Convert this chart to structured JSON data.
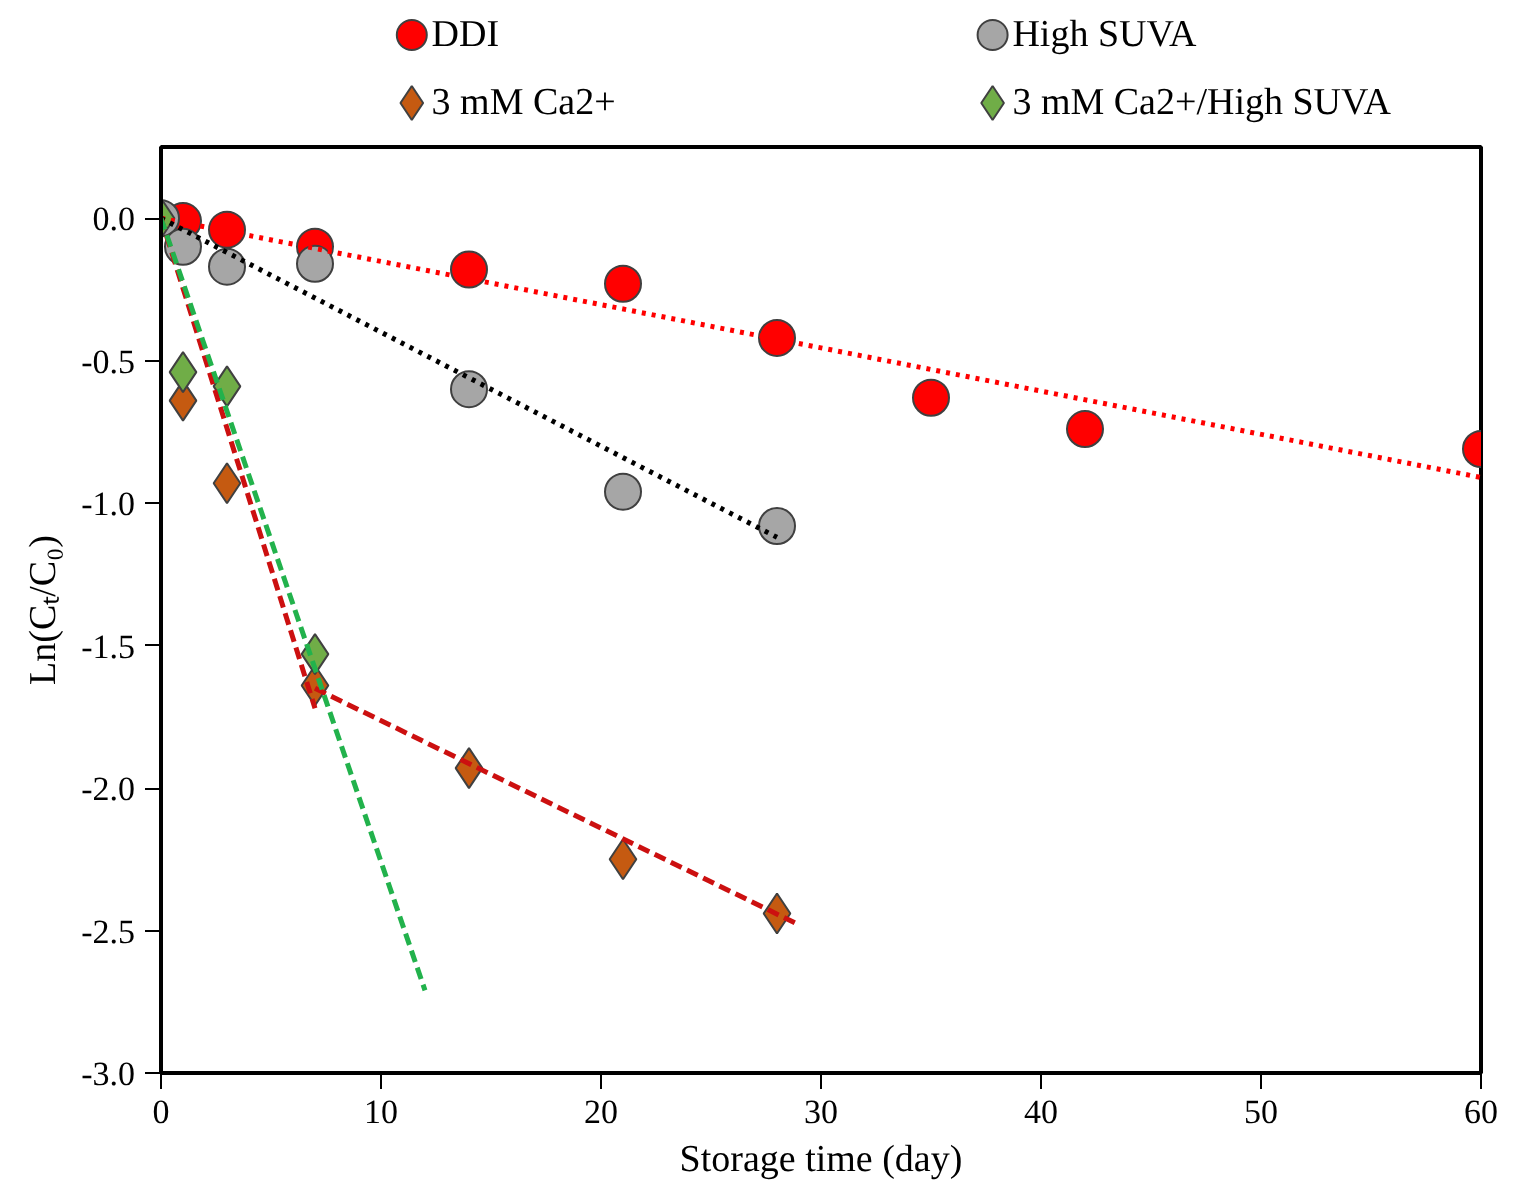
{
  "chart_data": {
    "type": "scatter",
    "xlabel": "Storage time (day)",
    "ylabel": "Ln(Cₜ/C₀)",
    "xlim": [
      0,
      60
    ],
    "ylim": [
      -3,
      0.25
    ],
    "xticks": [
      0,
      10,
      20,
      30,
      40,
      50,
      60
    ],
    "yticks": [
      {
        "value": -3,
        "label": "-3.0"
      },
      {
        "value": -2.5,
        "label": "-2.5"
      },
      {
        "value": -2,
        "label": "-2.0"
      },
      {
        "value": -1.5,
        "label": "-1.5"
      },
      {
        "value": -1,
        "label": "-1.0"
      },
      {
        "value": -0.5,
        "label": "-0.5"
      },
      {
        "value": 0,
        "label": "0.0"
      }
    ],
    "grid": false,
    "legend": "top",
    "series": [
      {
        "name": "DDI",
        "color": "#ff0000",
        "marker": "circle",
        "x": [
          1,
          3,
          7,
          14,
          21,
          28,
          35,
          42,
          60
        ],
        "values": [
          -0.01,
          -0.04,
          -0.1,
          -0.18,
          -0.23,
          -0.42,
          -0.63,
          -0.74,
          -0.81
        ]
      },
      {
        "name": "High SUVA",
        "color": "#a6a6a6",
        "marker": "circle",
        "x": [
          0,
          1,
          3,
          7,
          14,
          21,
          28
        ],
        "values": [
          0,
          -0.1,
          -0.17,
          -0.16,
          -0.6,
          -0.96,
          -1.08
        ]
      },
      {
        "name": "3 mM Ca2+",
        "color": "#c55a11",
        "marker": "diamond",
        "x": [
          1,
          3,
          7,
          14,
          21,
          28
        ],
        "values": [
          -0.64,
          -0.93,
          -1.64,
          -1.93,
          -2.25,
          -2.44
        ]
      },
      {
        "name": "3 mM Ca2+/High SUVA",
        "color": "#70ad47",
        "marker": "diamond",
        "x": [
          0,
          1,
          3,
          7
        ],
        "values": [
          0,
          -0.54,
          -0.59,
          -1.53
        ]
      },
      {
        "type": "line",
        "color": "#ff0000",
        "line_style": "dotted",
        "x": [
          0,
          60
        ],
        "values": [
          0,
          -0.91
        ]
      },
      {
        "type": "line",
        "color": "#000000",
        "line_style": "dotted",
        "x": [
          0,
          28
        ],
        "values": [
          0,
          -1.12
        ]
      },
      {
        "type": "line",
        "color": "#cc1010",
        "line_style": "dashed",
        "x": [
          0,
          7
        ],
        "values": [
          0,
          -1.72
        ]
      },
      {
        "type": "line",
        "color": "#cc1010",
        "line_style": "dashed",
        "x": [
          7,
          29
        ],
        "values": [
          -1.65,
          -2.48
        ]
      },
      {
        "type": "line",
        "color": "#22b24c",
        "line_style": "dashed",
        "x": [
          0,
          12
        ],
        "values": [
          0,
          -2.71
        ]
      }
    ]
  }
}
